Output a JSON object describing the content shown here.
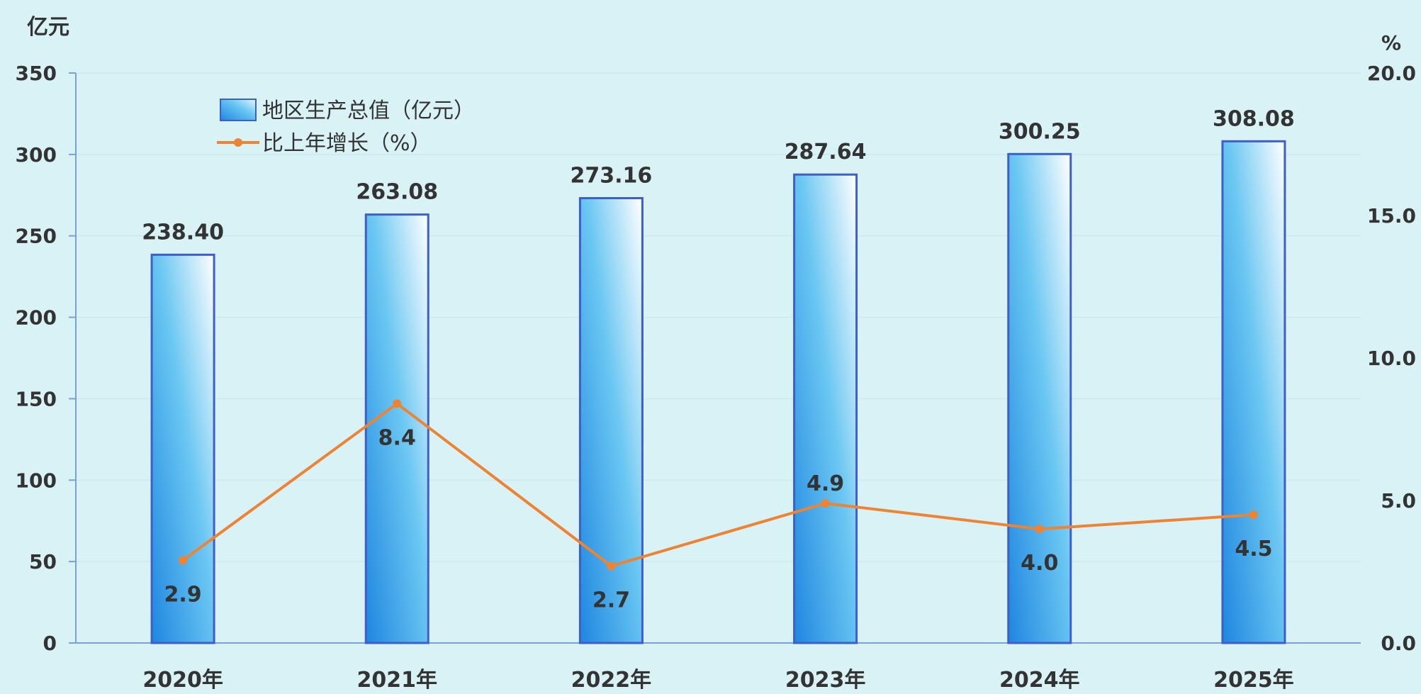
{
  "chart_data": {
    "type": "bar",
    "categories": [
      "2020年",
      "2021年",
      "2022年",
      "2023年",
      "2024年",
      "2025年"
    ],
    "series": [
      {
        "name": "地区生产总值（亿元）",
        "type": "bar",
        "axis": "left",
        "values": [
          238.4,
          263.08,
          273.16,
          287.64,
          300.25,
          308.08
        ],
        "labels": [
          "238.40",
          "263.08",
          "273.16",
          "287.64",
          "300.25",
          "308.08"
        ]
      },
      {
        "name": "比上年增长（%）",
        "type": "line",
        "axis": "right",
        "values": [
          2.9,
          8.4,
          2.7,
          4.9,
          4.0,
          4.5
        ],
        "labels": [
          "2.9",
          "8.4",
          "2.7",
          "4.9",
          "4.0",
          "4.5"
        ]
      }
    ],
    "y_left": {
      "unit": "亿元",
      "ylim": [
        0,
        350
      ],
      "ticks": [
        "0",
        "50",
        "100",
        "150",
        "200",
        "250",
        "300",
        "350"
      ]
    },
    "y_right": {
      "unit": "%",
      "ylim": [
        0,
        20
      ],
      "ticks": [
        "0.0",
        "5.0",
        "10.0",
        "15.0",
        "20.0"
      ]
    },
    "grid": true,
    "legend": "top-left",
    "colors": {
      "background": "#d8f2f6",
      "bar_dark": "#2a8fe0",
      "bar_light": "#ffffff",
      "bar_border": "#3d5fc6",
      "line": "#ec8434",
      "axis": "#7aa0d6",
      "text": "#333333"
    }
  }
}
